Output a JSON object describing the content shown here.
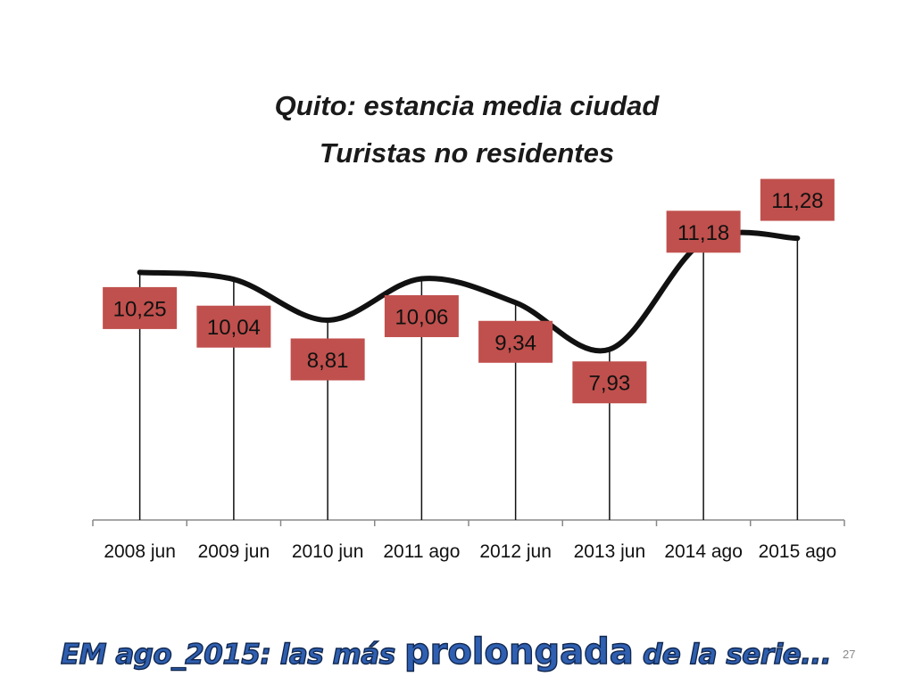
{
  "chart_data": {
    "type": "line",
    "title": [
      "Quito: estancia media ciudad",
      "Turistas no residentes"
    ],
    "xlabel": "",
    "ylabel": "",
    "categories": [
      "2008 jun",
      "2009 jun",
      "2010 jun",
      "2011 ago",
      "2012 jun",
      "2013 jun",
      "2014 ago",
      "2015 ago"
    ],
    "series": [
      {
        "values": [
          10.25,
          10.04,
          8.81,
          10.06,
          9.34,
          7.93,
          11.18,
          11.28
        ],
        "labels": [
          "10,25",
          "10,04",
          "8,81",
          "10,06",
          "9,34",
          "7,93",
          "11,18",
          "11,28"
        ]
      }
    ],
    "smooth": true,
    "drop_lines": true,
    "grid": false,
    "legend": "none",
    "colors": {
      "line": "#111111",
      "label_box": "#c0504d",
      "footer_text": "#2f5fb0"
    }
  },
  "footer": {
    "text_start": "EM  ago_2015: las más ",
    "text_emphasis": "prolongada",
    "text_end": " de la serie..."
  },
  "page_number": "27"
}
